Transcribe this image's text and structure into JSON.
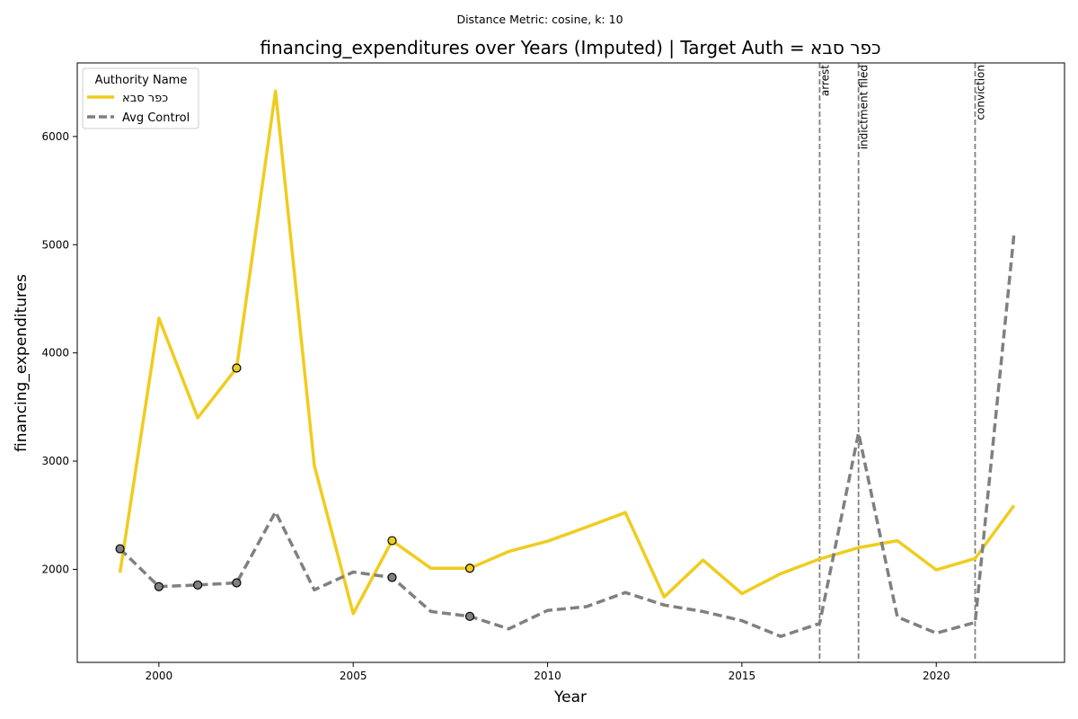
{
  "chart_data": {
    "type": "line",
    "suptitle": "Distance Metric: cosine, k: 10",
    "title": "financing_expenditures over Years (Imputed) | Target Auth = כפר סבא",
    "xlabel": "Year",
    "ylabel": "financing_expenditures",
    "xlim": [
      1997.9,
      2023.3
    ],
    "ylim": [
      1140,
      6680
    ],
    "xticks": [
      2000,
      2005,
      2010,
      2015,
      2020
    ],
    "yticks": [
      2000,
      3000,
      4000,
      5000,
      6000
    ],
    "legend": {
      "title": "Authority Name",
      "placement": "upper-left"
    },
    "series": [
      {
        "name": "כפר סבא",
        "color": "#f0cc1e",
        "style": "solid",
        "x": [
          1999,
          2000,
          2001,
          2002,
          2003,
          2004,
          2005,
          2006,
          2007,
          2008,
          2009,
          2010,
          2011,
          2012,
          2013,
          2014,
          2015,
          2016,
          2017,
          2018,
          2019,
          2020,
          2021,
          2022
        ],
        "y": [
          1970,
          4320,
          3400,
          3860,
          6420,
          2960,
          1590,
          2265,
          2010,
          2010,
          2165,
          2260,
          2390,
          2525,
          1745,
          2085,
          1775,
          1960,
          2095,
          2200,
          2265,
          1995,
          2100,
          2590
        ],
        "imputed_x": [
          2002,
          2006,
          2008
        ]
      },
      {
        "name": "Avg Control",
        "color": "#808080",
        "style": "dashed",
        "x": [
          1999,
          2000,
          2001,
          2002,
          2003,
          2004,
          2005,
          2006,
          2007,
          2008,
          2009,
          2010,
          2011,
          2012,
          2013,
          2014,
          2015,
          2016,
          2017,
          2018,
          2019,
          2020,
          2021,
          2022
        ],
        "y": [
          2190,
          1840,
          1855,
          1875,
          2530,
          1810,
          1975,
          1925,
          1610,
          1565,
          1450,
          1620,
          1655,
          1785,
          1670,
          1610,
          1525,
          1380,
          1500,
          3260,
          1560,
          1410,
          1510,
          5100
        ],
        "imputed_x": [
          1999,
          2000,
          2001,
          2002,
          2006,
          2008
        ]
      }
    ],
    "events": [
      {
        "x": 2017,
        "label": "arrest"
      },
      {
        "x": 2018,
        "label": "indictment filed"
      },
      {
        "x": 2021,
        "label": "conviction"
      }
    ]
  }
}
